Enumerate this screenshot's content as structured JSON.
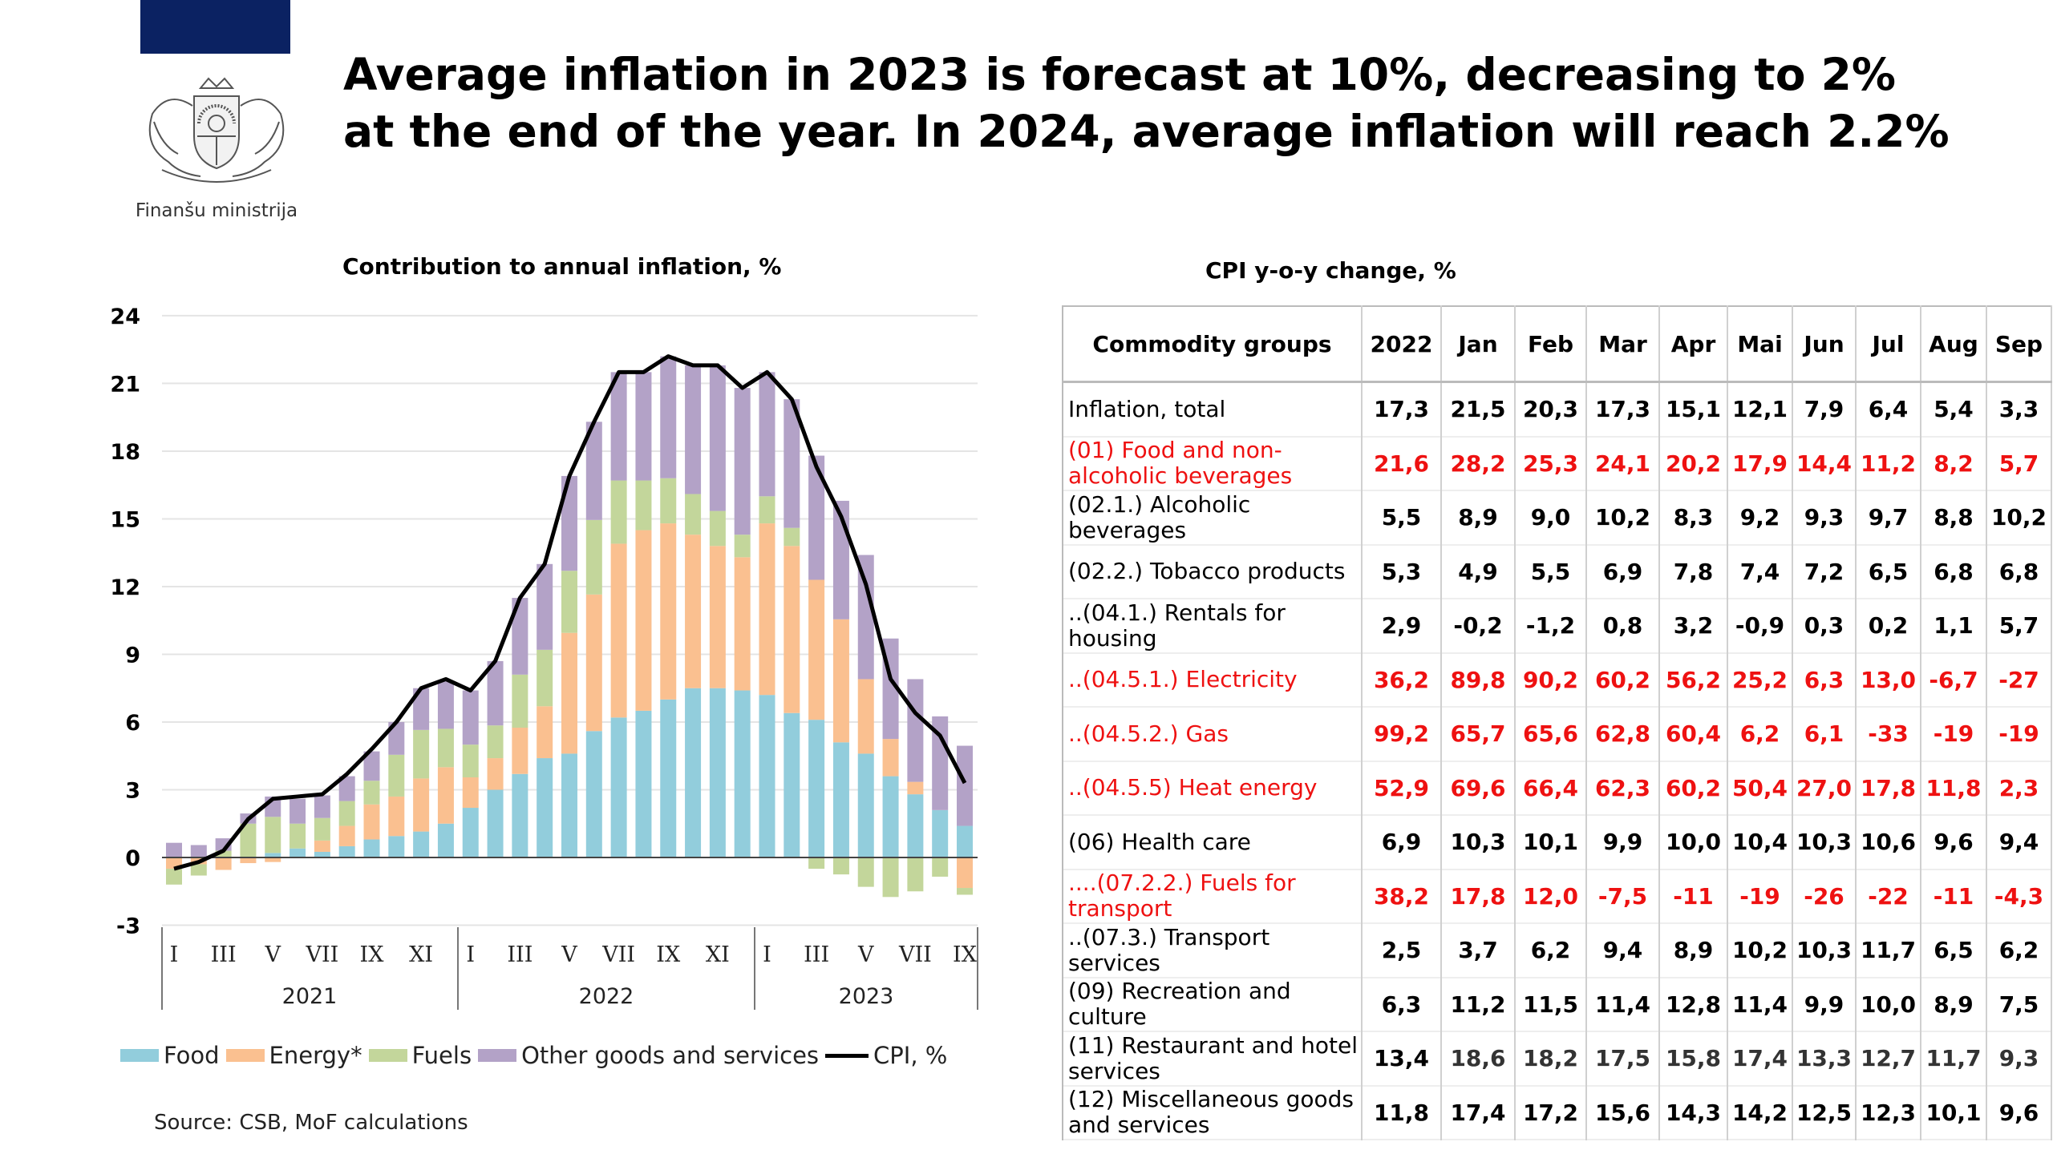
{
  "header": {
    "brand_color": "#0b2262",
    "ministry": "Finanšu ministrija",
    "title": "Average inflation in 2023 is forecast at 10%, decreasing to 2% at the end of the year. In 2024, average inflation will reach 2.2%"
  },
  "chart_data": {
    "type": "bar",
    "stacked": true,
    "title": "Contribution to annual inflation, %",
    "ylim": [
      -3,
      24
    ],
    "yticks": [
      "24",
      "21",
      "18",
      "15",
      "12",
      "9",
      "6",
      "3",
      "0",
      "-3"
    ],
    "grid": true,
    "legend_position": "bottom",
    "month_ticks": [
      "I",
      "III",
      "V",
      "VII",
      "IX",
      "XI",
      "I",
      "III",
      "V",
      "VII",
      "IX",
      "XI",
      "I",
      "III",
      "V",
      "VII",
      "IX"
    ],
    "years": [
      "2021",
      "2022",
      "2023"
    ],
    "categories": [
      "2021-01",
      "2021-02",
      "2021-03",
      "2021-04",
      "2021-05",
      "2021-06",
      "2021-07",
      "2021-08",
      "2021-09",
      "2021-10",
      "2021-11",
      "2021-12",
      "2022-01",
      "2022-02",
      "2022-03",
      "2022-04",
      "2022-05",
      "2022-06",
      "2022-07",
      "2022-08",
      "2022-09",
      "2022-10",
      "2022-11",
      "2022-12",
      "2023-01",
      "2023-02",
      "2023-03",
      "2023-04",
      "2023-05",
      "2023-06",
      "2023-07",
      "2023-08",
      "2023-09"
    ],
    "series": [
      {
        "name": "Food",
        "color": "#92cddc",
        "values": [
          0,
          0,
          0,
          0,
          0.2,
          0.4,
          0.25,
          0.5,
          0.8,
          0.95,
          1.15,
          1.5,
          2.2,
          3.0,
          3.7,
          4.4,
          4.6,
          5.6,
          6.2,
          6.5,
          7.0,
          7.5,
          7.5,
          7.4,
          7.2,
          6.4,
          6.1,
          5.1,
          4.6,
          3.6,
          2.8,
          2.1,
          1.4
        ]
      },
      {
        "name": "Energy*",
        "color": "#fac090",
        "values": [
          -0.5,
          -0.3,
          -0.55,
          -0.25,
          -0.2,
          0,
          0.5,
          0.9,
          1.55,
          1.75,
          2.35,
          2.5,
          1.35,
          1.4,
          2.05,
          2.3,
          5.35,
          6.05,
          7.7,
          8.0,
          7.8,
          6.8,
          6.3,
          5.9,
          7.6,
          7.4,
          6.2,
          5.45,
          3.3,
          1.65,
          0.55,
          0,
          -1.35
        ]
      },
      {
        "name": "Fuels",
        "color": "#c3d69b",
        "values": [
          -0.7,
          -0.5,
          0.3,
          1.5,
          1.6,
          1.1,
          1.0,
          1.1,
          1.05,
          1.85,
          2.15,
          1.7,
          1.45,
          1.45,
          2.35,
          2.5,
          2.75,
          3.3,
          2.8,
          2.2,
          2.0,
          1.8,
          1.55,
          1.0,
          1.2,
          0.8,
          -0.5,
          -0.75,
          -1.3,
          -1.75,
          -1.5,
          -0.85,
          -0.3
        ]
      },
      {
        "name": "Other goods and services",
        "color": "#b3a2c7",
        "values": [
          0.65,
          0.55,
          0.55,
          0.45,
          0.9,
          1.1,
          1.0,
          1.1,
          1.3,
          1.45,
          1.85,
          2.1,
          2.4,
          2.85,
          3.4,
          3.8,
          4.2,
          4.35,
          4.8,
          4.8,
          5.4,
          5.7,
          6.45,
          6.5,
          5.5,
          5.7,
          5.5,
          5.25,
          5.5,
          4.45,
          4.55,
          4.15,
          3.55
        ]
      }
    ],
    "line": {
      "name": "CPI, %",
      "color": "#000000",
      "values": [
        -0.5,
        -0.2,
        0.3,
        1.7,
        2.6,
        2.7,
        2.8,
        3.7,
        4.8,
        6.0,
        7.5,
        7.9,
        7.4,
        8.7,
        11.5,
        13.0,
        16.9,
        19.3,
        21.5,
        21.5,
        22.2,
        21.8,
        21.8,
        20.8,
        21.5,
        20.3,
        17.3,
        15.1,
        12.1,
        7.9,
        6.4,
        5.4,
        3.3
      ]
    },
    "source": "Source: CSB, MoF calculations"
  },
  "table": {
    "title": "CPI y-o-y change, %",
    "red_color": "#ee1111",
    "columns": [
      "Commodity groups",
      "2022",
      "Jan",
      "Feb",
      "Mar",
      "Apr",
      "Mai",
      "Jun",
      "Jul",
      "Aug",
      "Sep"
    ],
    "rows": [
      {
        "label": "Inflation, total",
        "style": "bold",
        "values": [
          "17,3",
          "21,5",
          "20,3",
          "17,3",
          "15,1",
          "12,1",
          "7,9",
          "6,4",
          "5,4",
          "3,3"
        ]
      },
      {
        "label": "(01) Food and non-alcoholic beverages",
        "style": "red",
        "values": [
          "21,6",
          "28,2",
          "25,3",
          "24,1",
          "20,2",
          "17,9",
          "14,4",
          "11,2",
          "8,2",
          "5,7"
        ]
      },
      {
        "label": "(02.1.) Alcoholic beverages",
        "style": "normal",
        "values": [
          "5,5",
          "8,9",
          "9,0",
          "10,2",
          "8,3",
          "9,2",
          "9,3",
          "9,7",
          "8,8",
          "10,2"
        ]
      },
      {
        "label": "(02.2.) Tobacco products",
        "style": "normal",
        "values": [
          "5,3",
          "4,9",
          "5,5",
          "6,9",
          "7,8",
          "7,4",
          "7,2",
          "6,5",
          "6,8",
          "6,8"
        ]
      },
      {
        "label": "..(04.1.) Rentals for housing",
        "style": "normal",
        "values": [
          "2,9",
          "-0,2",
          "-1,2",
          "0,8",
          "3,2",
          "-0,9",
          "0,3",
          "0,2",
          "1,1",
          "5,7"
        ]
      },
      {
        "label": "..(04.5.1.) Electricity",
        "style": "red",
        "values": [
          "36,2",
          "89,8",
          "90,2",
          "60,2",
          "56,2",
          "25,2",
          "6,3",
          "13,0",
          "-6,7",
          "-27"
        ]
      },
      {
        "label": "..(04.5.2.) Gas",
        "style": "red",
        "values": [
          "99,2",
          "65,7",
          "65,6",
          "62,8",
          "60,4",
          "6,2",
          "6,1",
          "-33",
          "-19",
          "-19"
        ]
      },
      {
        "label": "..(04.5.5) Heat energy",
        "style": "red",
        "values": [
          "52,9",
          "69,6",
          "66,4",
          "62,3",
          "60,2",
          "50,4",
          "27,0",
          "17,8",
          "11,8",
          "2,3"
        ]
      },
      {
        "label": "(06) Health care",
        "style": "normal",
        "values": [
          "6,9",
          "10,3",
          "10,1",
          "9,9",
          "10,0",
          "10,4",
          "10,3",
          "10,6",
          "9,6",
          "9,4"
        ]
      },
      {
        "label": "....(07.2.2.) Fuels for transport",
        "style": "red",
        "values": [
          "38,2",
          "17,8",
          "12,0",
          "-7,5",
          "-11",
          "-19",
          "-26",
          "-22",
          "-11",
          "-4,3"
        ]
      },
      {
        "label": "..(07.3.) Transport services",
        "style": "normal",
        "values": [
          "2,5",
          "3,7",
          "6,2",
          "9,4",
          "8,9",
          "10,2",
          "10,3",
          "11,7",
          "6,5",
          "6,2"
        ]
      },
      {
        "label": "(09) Recreation and culture",
        "style": "normal",
        "values": [
          "6,3",
          "11,2",
          "11,5",
          "11,4",
          "12,8",
          "11,4",
          "9,9",
          "10,0",
          "8,9",
          "7,5"
        ]
      },
      {
        "label": "(11) Restaurant and hotel services",
        "style": "normalvals",
        "values": [
          "13,4",
          "18,6",
          "18,2",
          "17,5",
          "15,8",
          "17,4",
          "13,3",
          "12,7",
          "11,7",
          "9,3"
        ]
      },
      {
        "label": "(12) Miscellaneous goods and services",
        "style": "normal",
        "values": [
          "11,8",
          "17,4",
          "17,2",
          "15,6",
          "14,3",
          "14,2",
          "12,5",
          "12,3",
          "10,1",
          "9,6"
        ]
      }
    ]
  }
}
